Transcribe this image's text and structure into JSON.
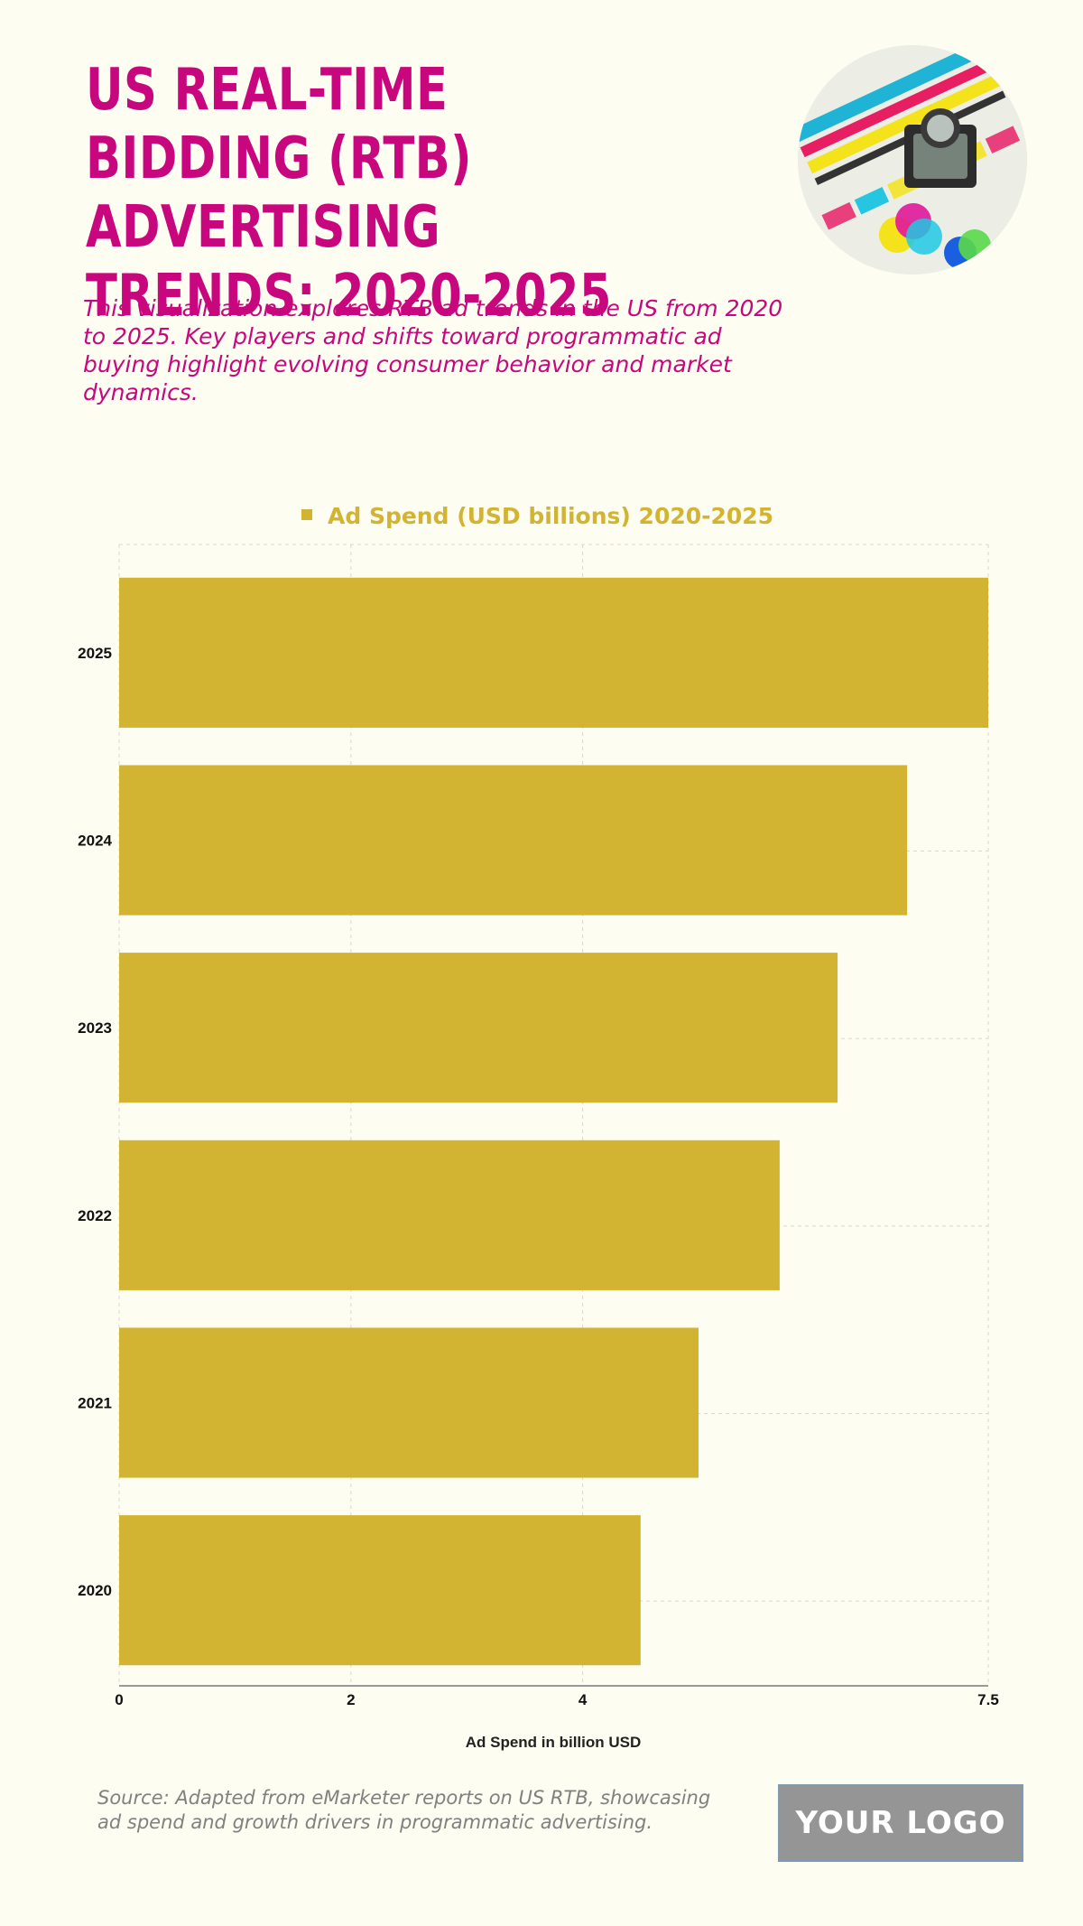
{
  "header": {
    "title": "US REAL-TIME BIDDING (RTB) ADVERTISING TRENDS: 2020-2025",
    "subtitle": "This visualization explores RTB ad trends in the US from 2020 to 2025. Key players and shifts toward programmatic ad buying highlight evolving consumer behavior and market dynamics."
  },
  "hero_icon": "magnifier-over-color-swatches-icon",
  "chart_data": {
    "type": "bar",
    "orientation": "horizontal",
    "categories": [
      "2025",
      "2024",
      "2023",
      "2022",
      "2021",
      "2020"
    ],
    "series": [
      {
        "name": "Ad Spend (USD billions) 2020-2025",
        "values": [
          7.5,
          6.8,
          6.2,
          5.7,
          5.0,
          4.5
        ]
      }
    ],
    "xlabel": "Ad Spend in billion USD",
    "ylabel": "",
    "xlim": [
      0,
      7.5
    ],
    "xticks": [
      0,
      2,
      4,
      7.5
    ],
    "grid": true,
    "legend_position": "top-center",
    "bar_color": "#d2b332"
  },
  "footer": {
    "source": "Source: Adapted from eMarketer reports on US RTB, showcasing ad spend and growth drivers in programmatic advertising.",
    "logo_text": "YOUR LOGO"
  }
}
